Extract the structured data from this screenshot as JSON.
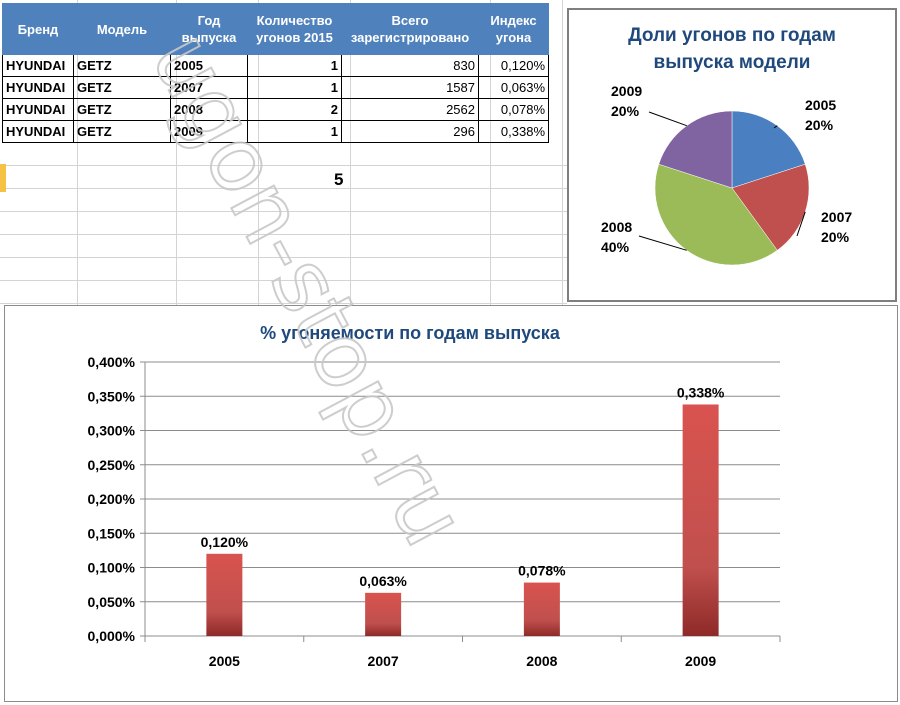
{
  "table": {
    "headers": [
      "Бренд",
      "Модель",
      "Год выпуска",
      "Количество угонов 2015",
      "Всего зарегистрировано",
      "Индекс угона"
    ],
    "rows": [
      [
        "HYUNDAI",
        "GETZ",
        "2005",
        "1",
        "830",
        "0,120%"
      ],
      [
        "HYUNDAI",
        "GETZ",
        "2007",
        "1",
        "1587",
        "0,063%"
      ],
      [
        "HYUNDAI",
        "GETZ",
        "2008",
        "2",
        "2562",
        "0,078%"
      ],
      [
        "HYUNDAI",
        "GETZ",
        "2009",
        "1",
        "296",
        "0,338%"
      ]
    ]
  },
  "stray_value": "5",
  "watermark": "ugon-stop.ru",
  "chart_data": [
    {
      "type": "pie",
      "title": "Доли угонов  по годам выпуска  модели",
      "categories": [
        "2005",
        "2007",
        "2008",
        "2009"
      ],
      "values": [
        20,
        20,
        40,
        20
      ],
      "labels": [
        "20%",
        "20%",
        "40%",
        "20%"
      ],
      "colors": [
        "#4a7fc1",
        "#c0504d",
        "#9bbb59",
        "#8064a2"
      ]
    },
    {
      "type": "bar",
      "title": "% угоняемости  по годам  выпуска",
      "categories": [
        "2005",
        "2007",
        "2008",
        "2009"
      ],
      "values": [
        0.12,
        0.063,
        0.078,
        0.338
      ],
      "data_labels": [
        "0,120%",
        "0,063%",
        "0,078%",
        "0,338%"
      ],
      "ylim": [
        0,
        0.4
      ],
      "yticks": [
        "0,000%",
        "0,050%",
        "0,100%",
        "0,150%",
        "0,200%",
        "0,250%",
        "0,300%",
        "0,350%",
        "0,400%"
      ],
      "grid": true,
      "color": "#c0504d"
    }
  ]
}
